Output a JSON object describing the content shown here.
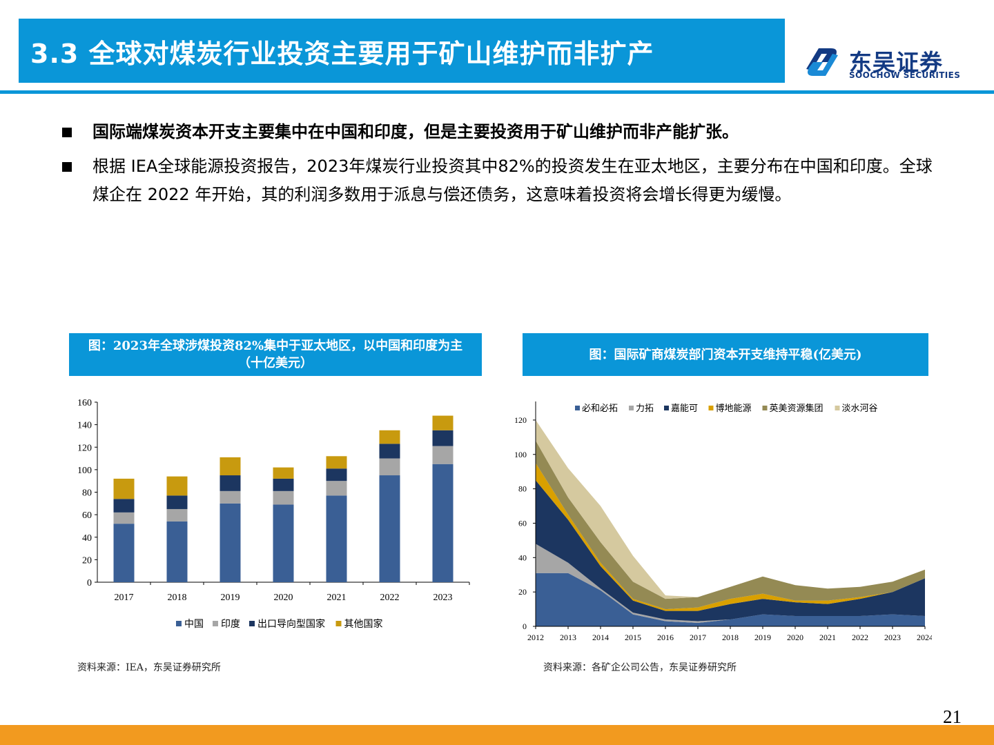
{
  "header": {
    "title": "3.3 全球对煤炭行业投资主要用于矿山维护而非扩产"
  },
  "logo": {
    "name_cn": "东吴证券",
    "name_en": "SOOCHOW SECURITIES"
  },
  "bullets": [
    "国际端煤炭资本开支主要集中在中国和印度，但是主要投资用于矿山维护而非产能扩张。",
    "根据 IEA全球能源投资报告，2023年煤炭行业投资其中82%的投资发生在亚太地区，主要分布在中国和印度。全球煤企在 2022 年开始，其的利润多数用于派息与偿还债务，这意味着投资将会增长得更为缓慢。"
  ],
  "colors": {
    "brand_blue": "#0a96d8",
    "accent_orange": "#f29a1f",
    "china": "#3a5f95",
    "india": "#a6a6a6",
    "export": "#1c3660",
    "other": "#c89a0f",
    "bhp": "#3a5f95",
    "rio": "#a6a6a6",
    "glencore": "#1c3660",
    "peabody": "#d9a000",
    "anglo": "#948a54",
    "s32": "#d5c99f"
  },
  "chart_data": [
    {
      "type": "bar",
      "stacked": true,
      "title": "图：2023年全球涉煤投资82%集中于亚太地区，以中国和印度为主（十亿美元）",
      "categories": [
        "2017",
        "2018",
        "2019",
        "2020",
        "2021",
        "2022",
        "2023"
      ],
      "series": [
        {
          "name": "中国",
          "values": [
            52,
            54,
            70,
            69,
            77,
            95,
            105
          ]
        },
        {
          "name": "印度",
          "values": [
            10,
            11,
            11,
            12,
            13,
            15,
            16
          ]
        },
        {
          "name": "出口导向型国家",
          "values": [
            12,
            12,
            14,
            11,
            11,
            13,
            14
          ]
        },
        {
          "name": "其他国家",
          "values": [
            18,
            17,
            16,
            10,
            11,
            12,
            13
          ]
        }
      ],
      "yticks": [
        0,
        20,
        40,
        60,
        80,
        100,
        120,
        140,
        160
      ],
      "ylim": [
        0,
        160
      ],
      "legend": "bottom",
      "source": "资料来源：IEA，东吴证券研究所"
    },
    {
      "type": "area",
      "stacked": true,
      "title": "图：国际矿商煤炭部门资本开支维持平稳(亿美元)",
      "x": [
        "2012",
        "2013",
        "2014",
        "2015",
        "2016",
        "2017",
        "2018",
        "2019",
        "2020",
        "2021",
        "2022",
        "2023",
        "2024"
      ],
      "series": [
        {
          "name": "必和必拓",
          "values": [
            31,
            31,
            21,
            7,
            3,
            2,
            4,
            7,
            6,
            6,
            6,
            7,
            6
          ]
        },
        {
          "name": "力拓",
          "values": [
            17,
            6,
            1,
            1,
            1,
            1,
            0,
            0,
            0,
            0,
            0,
            0,
            0
          ]
        },
        {
          "name": "嘉能可",
          "values": [
            37,
            25,
            13,
            7,
            5,
            6,
            9,
            9,
            8,
            7,
            10,
            13,
            22
          ]
        },
        {
          "name": "博地能源",
          "values": [
            10,
            3,
            2,
            1,
            1,
            2,
            3,
            3,
            1,
            2,
            1,
            0,
            0
          ]
        },
        {
          "name": "英美资源集团",
          "values": [
            13,
            10,
            12,
            10,
            6,
            6,
            7,
            10,
            9,
            7,
            6,
            6,
            5
          ]
        },
        {
          "name": "淡水河谷",
          "values": [
            12,
            17,
            21,
            15,
            2,
            0,
            0,
            0,
            0,
            0,
            0,
            0,
            0
          ]
        }
      ],
      "yticks": [
        0,
        20,
        40,
        60,
        80,
        100,
        120
      ],
      "ylim": [
        0,
        130
      ],
      "legend": "top",
      "source": "资料来源：各矿企公司公告，东吴证券研究所"
    }
  ],
  "page_number": "21"
}
